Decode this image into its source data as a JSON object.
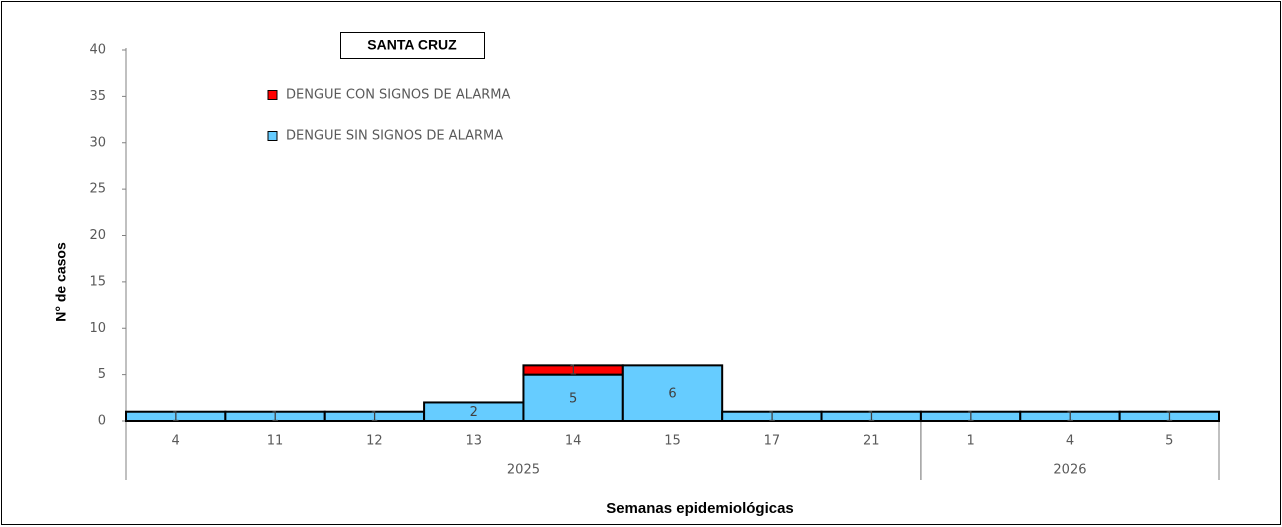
{
  "chart_data": {
    "type": "stacked-bar",
    "title": "SANTA CRUZ",
    "y_label": "N° de casos",
    "x_label": "Semanas epidemiológicas",
    "groups": [
      {
        "label": "2025",
        "categories": [
          "4",
          "11",
          "12",
          "13",
          "14",
          "15",
          "17",
          "21"
        ]
      },
      {
        "label": "2026",
        "categories": [
          "1",
          "4",
          "5"
        ]
      }
    ],
    "series": [
      {
        "name": "DENGUE SIN SIGNOS DE ALARMA",
        "color": "#66ccff",
        "values": [
          1,
          1,
          1,
          2,
          5,
          6,
          1,
          1,
          1,
          1,
          1
        ]
      },
      {
        "name": "DENGUE CON SIGNOS DE ALARMA",
        "color": "#ff0000",
        "values": [
          0,
          0,
          0,
          0,
          1,
          0,
          0,
          0,
          0,
          0,
          0
        ]
      }
    ],
    "ylim": [
      0,
      40
    ],
    "yticks": [
      0,
      5,
      10,
      15,
      20,
      25,
      30,
      35,
      40
    ]
  }
}
